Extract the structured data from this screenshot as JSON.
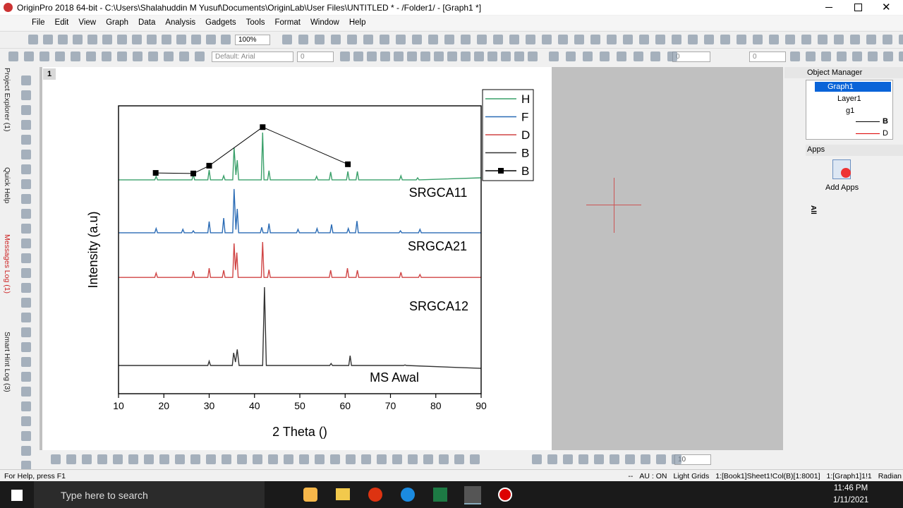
{
  "window": {
    "title": "OriginPro 2018 64-bit - C:\\Users\\Shalahuddin M Yusuf\\Documents\\OriginLab\\User Files\\UNTITLED * - /Folder1/ - [Graph1 *]"
  },
  "menu": [
    "File",
    "Edit",
    "View",
    "Graph",
    "Data",
    "Analysis",
    "Gadgets",
    "Tools",
    "Format",
    "Window",
    "Help"
  ],
  "toolbar": {
    "zoom": "100%",
    "font": "Default: Arial",
    "font_size": "0",
    "line_width": "0",
    "fill": "0",
    "bottom_size": "10"
  },
  "side_tabs": [
    "Project Explorer (1)",
    "Quick Help",
    "Messages Log (1)",
    "Smart Hint Log (3)"
  ],
  "page_number": "1",
  "object_manager": {
    "title": "Object Manager",
    "items": [
      "Graph1",
      "Layer1",
      "g1",
      "B",
      "D"
    ]
  },
  "apps": {
    "title": "Apps",
    "tab": "All",
    "item": "Add Apps"
  },
  "status": {
    "help": "For Help, press F1",
    "items": [
      "--",
      "AU : ON",
      "Light Grids",
      "1:[Book1]Sheet1!Col(B)[1:8001]",
      "1:[Graph1]1!1",
      "Radian"
    ]
  },
  "taskbar": {
    "search": "Type here to search",
    "time": "11:46 PM",
    "date": "1/11/2021"
  },
  "chart_data": {
    "type": "line",
    "xlabel": "2 Theta ()",
    "ylabel": "Intensity (a.u)",
    "xlim": [
      10,
      90
    ],
    "xticks": [
      10,
      20,
      30,
      40,
      50,
      60,
      70,
      80,
      90
    ],
    "ylim": [
      0,
      100
    ],
    "annotations": [
      "SRGCA11",
      "SRGCA21",
      "SRGCA12",
      "MS Awal"
    ],
    "series": [
      {
        "name": "H",
        "color": "#3aa06a",
        "x": [
          10,
          18.0,
          18.3,
          18.6,
          26.2,
          26.5,
          26.8,
          29.7,
          30,
          30.3,
          32.9,
          33.2,
          33.5,
          35.2,
          35.5,
          35.9,
          36.2,
          36.5,
          41.5,
          41.8,
          42.1,
          42.9,
          43.2,
          43.5,
          53.4,
          53.7,
          54.0,
          56.5,
          56.8,
          57.1,
          60.3,
          60.6,
          60.9,
          62.4,
          62.7,
          63.0,
          72.0,
          72.3,
          72.6,
          75.7,
          76,
          76.3,
          90
        ],
        "values": [
          74.3,
          74.3,
          75.5,
          74.3,
          74.3,
          76.2,
          74.3,
          74.3,
          77.7,
          74.3,
          74.3,
          75.7,
          74.3,
          74.3,
          85.5,
          76,
          81.1,
          74.3,
          74.3,
          90.7,
          74.3,
          74.3,
          77.5,
          74.3,
          74.3,
          75.5,
          74.3,
          74.3,
          77.0,
          74.3,
          74.3,
          77.2,
          74.3,
          74.3,
          77.2,
          74.3,
          74.3,
          75.7,
          74.3,
          74.3,
          75.0,
          74.3,
          75.0
        ]
      },
      {
        "name": "F",
        "color": "#2a6bb5",
        "x": [
          10,
          18.0,
          18.3,
          18.6,
          23.9,
          24.2,
          24.5,
          26.2,
          26.5,
          26.8,
          29.7,
          30,
          30.3,
          32.9,
          33.2,
          33.5,
          35.2,
          35.5,
          35.9,
          36.2,
          36.5,
          41.3,
          41.6,
          41.9,
          42.9,
          43.2,
          43.5,
          49.3,
          49.6,
          49.9,
          53.5,
          53.8,
          54.1,
          56.7,
          57,
          57.3,
          60.4,
          60.7,
          61.0,
          62.3,
          62.6,
          62.9,
          71.9,
          72.2,
          72.5,
          76.2,
          76.5,
          76.8,
          90
        ],
        "values": [
          55.9,
          55.9,
          57.4,
          55.9,
          55.9,
          57.1,
          55.9,
          55.9,
          56.6,
          55.9,
          55.9,
          59.8,
          55.9,
          55.9,
          61.0,
          55.9,
          55.9,
          71.1,
          57,
          64.2,
          55.9,
          55.9,
          57.8,
          55.9,
          55.9,
          59.1,
          55.9,
          55.9,
          57.1,
          55.9,
          55.9,
          57.4,
          55.9,
          55.9,
          58.8,
          55.9,
          55.9,
          57.4,
          55.9,
          55.9,
          60.0,
          55.9,
          55.9,
          56.6,
          55.9,
          55.9,
          57.1,
          55.9,
          55.9
        ]
      },
      {
        "name": "D",
        "color": "#d04545",
        "x": [
          10,
          18.0,
          18.3,
          18.6,
          26.2,
          26.5,
          26.8,
          29.7,
          30,
          30.3,
          32.9,
          33.2,
          33.5,
          35.2,
          35.5,
          35.8,
          36.1,
          36.4,
          41.5,
          41.8,
          42.1,
          42.9,
          43.2,
          43.5,
          56.5,
          56.8,
          57.1,
          60.2,
          60.5,
          60.8,
          62.4,
          62.7,
          63.0,
          72.0,
          72.3,
          72.6,
          76.2,
          76.5,
          76.8,
          90
        ],
        "values": [
          40.4,
          40.4,
          41.9,
          40.4,
          40.4,
          42.6,
          40.4,
          40.4,
          43.6,
          40.4,
          40.4,
          42.9,
          40.4,
          40.4,
          52.2,
          43,
          49.0,
          40.4,
          40.4,
          52.7,
          40.4,
          40.4,
          43.1,
          40.4,
          40.4,
          42.9,
          40.4,
          40.4,
          43.6,
          40.4,
          40.4,
          42.9,
          40.4,
          40.4,
          42.2,
          40.4,
          40.4,
          41.4,
          40.4,
          40.4
        ]
      },
      {
        "name": "B",
        "color": "#333333",
        "x": [
          10,
          29.7,
          30,
          30.3,
          35.1,
          35.4,
          35.8,
          36.2,
          36.6,
          41.8,
          42.2,
          42.6,
          56.6,
          56.9,
          57.2,
          60.8,
          61.1,
          61.4,
          72.9,
          73.2,
          73.5,
          90
        ],
        "values": [
          9.8,
          9.8,
          11.3,
          9.8,
          9.8,
          14.2,
          11,
          15.4,
          9.8,
          9.8,
          37.0,
          9.8,
          9.8,
          10.5,
          9.8,
          9.8,
          13.2,
          9.8,
          9.8,
          10.0,
          9.8,
          8.8
        ]
      },
      {
        "name": "B",
        "color": "#000000",
        "marker": "square",
        "x": [
          18.2,
          26.5,
          30,
          41.8,
          60.6
        ],
        "values": [
          76.7,
          76.5,
          79.2,
          92.6,
          79.7
        ]
      }
    ]
  }
}
